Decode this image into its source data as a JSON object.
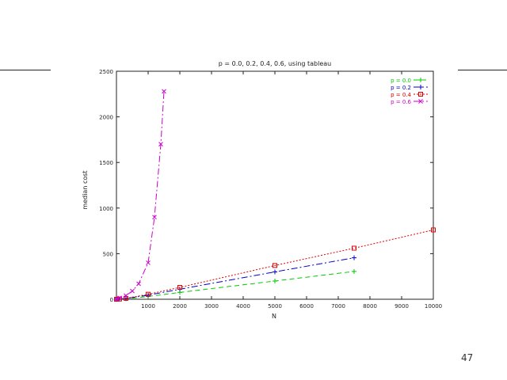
{
  "slide": {
    "page_number": "47"
  },
  "chart_data": {
    "type": "line",
    "title": "p = 0.0, 0.2, 0.4, 0.6, using tableau",
    "xlabel": "N",
    "ylabel": "median cost",
    "xlim": [
      0,
      10000
    ],
    "ylim": [
      0,
      2500
    ],
    "xticks": [
      1000,
      2000,
      3000,
      4000,
      5000,
      6000,
      7000,
      8000,
      9000,
      10000
    ],
    "yticks": [
      0,
      500,
      1000,
      1500,
      2000,
      2500
    ],
    "grid": false,
    "legend_position": "top-right",
    "series": [
      {
        "name": "p = 0.0",
        "color": "#00cc00",
        "marker": "plus",
        "dash": "6,4",
        "x": [
          0,
          100,
          300,
          1000,
          2000,
          5000,
          7500
        ],
        "y": [
          0,
          2,
          5,
          30,
          75,
          200,
          305
        ]
      },
      {
        "name": "p = 0.2",
        "color": "#0000cc",
        "marker": "plus",
        "dash": "8,3,2,3",
        "x": [
          0,
          100,
          300,
          1000,
          2000,
          5000,
          7500
        ],
        "y": [
          0,
          2,
          8,
          45,
          110,
          300,
          455
        ]
      },
      {
        "name": "p = 0.4",
        "color": "#dd0000",
        "marker": "square",
        "dash": "2,2",
        "x": [
          0,
          100,
          300,
          1000,
          2000,
          5000,
          7500,
          10000
        ],
        "y": [
          0,
          3,
          10,
          55,
          130,
          370,
          560,
          760
        ]
      },
      {
        "name": "p = 0.6",
        "color": "#cc00cc",
        "marker": "x",
        "dash": "8,3,2,3",
        "x": [
          0,
          100,
          300,
          500,
          700,
          1000,
          1200,
          1400,
          1500
        ],
        "y": [
          0,
          15,
          40,
          90,
          170,
          400,
          900,
          1700,
          2280
        ]
      }
    ]
  }
}
